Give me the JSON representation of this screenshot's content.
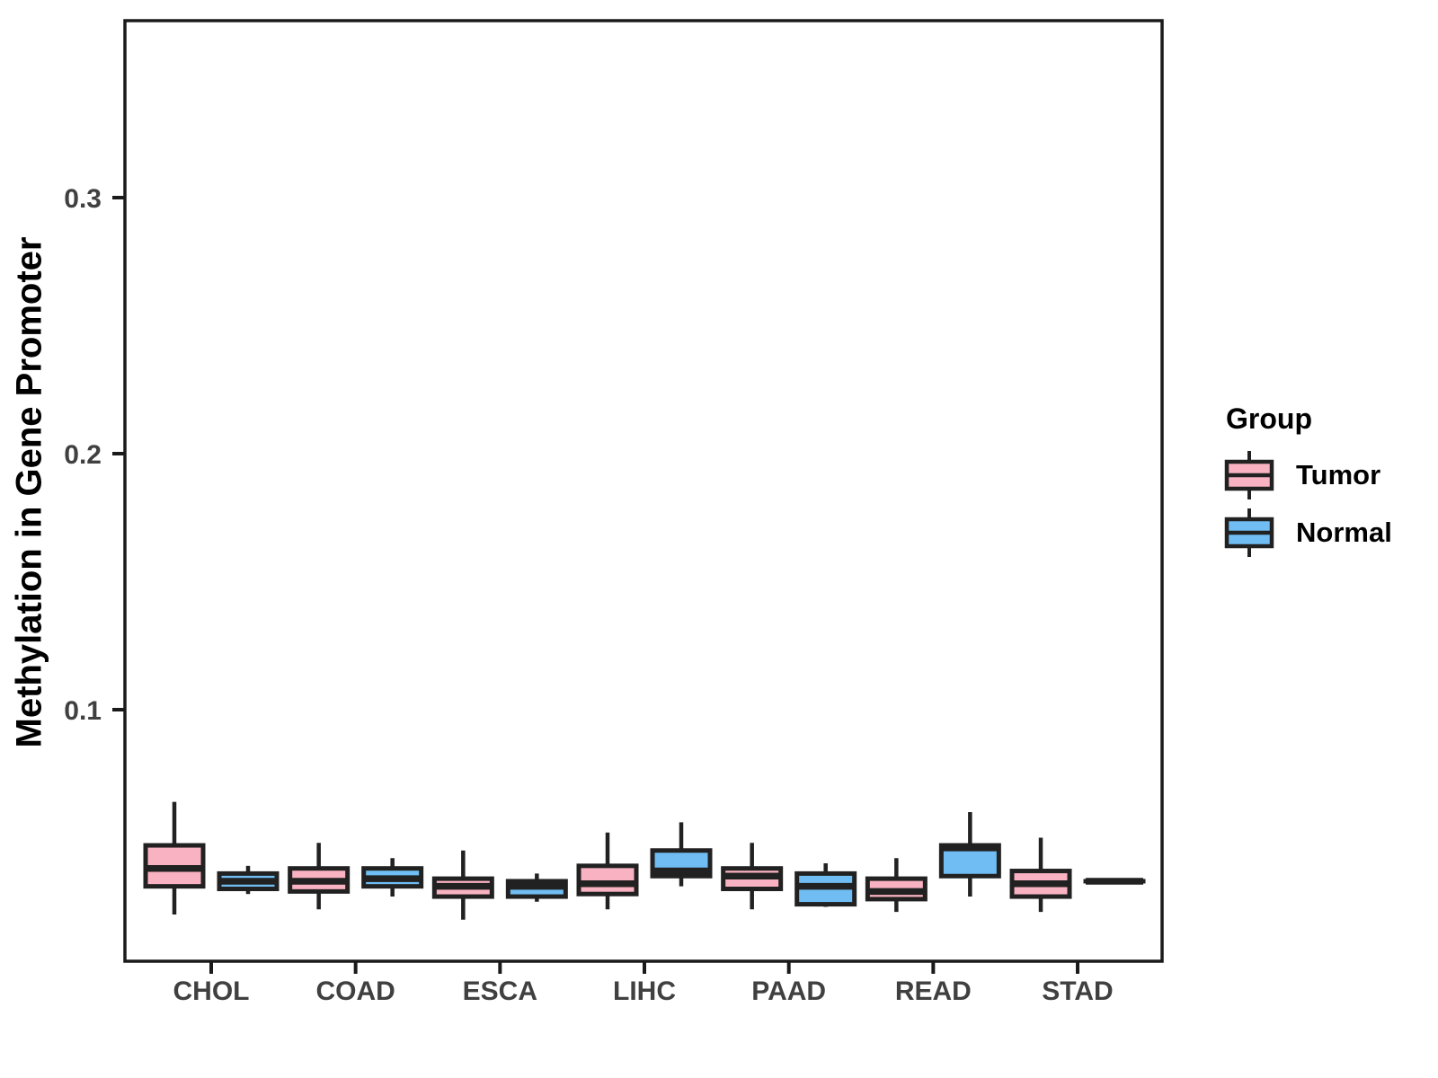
{
  "figure": {
    "background": "#FFFFFF"
  },
  "axes": {
    "y_title": "Methylation in Gene Promoter",
    "y_ticks": [
      {
        "label": "0.3",
        "value": 0.3
      },
      {
        "label": "0.2",
        "value": 0.2
      },
      {
        "label": "0.1",
        "value": 0.1
      }
    ],
    "x_tick_labels": [
      "CHOL",
      "COAD",
      "ESCA",
      "LIHC",
      "PAAD",
      "READ",
      "STAD"
    ]
  },
  "legend": {
    "title": "Group",
    "items": [
      {
        "label": "Tumor",
        "color": "#F9B2C1"
      },
      {
        "label": "Normal",
        "color": "#6FBDF2"
      }
    ]
  },
  "style": {
    "box_border": "#212121",
    "panel_border": "#1A1A1A",
    "tick_color": "#1A1A1A",
    "axis_text_color": "#404040"
  },
  "chart_data": {
    "type": "boxplot",
    "title": "",
    "xlabel": "",
    "ylabel": "Methylation in Gene Promoter",
    "categories": [
      "CHOL",
      "COAD",
      "ESCA",
      "LIHC",
      "PAAD",
      "READ",
      "STAD"
    ],
    "yticks": [
      0.1,
      0.2,
      0.3
    ],
    "ylim": [
      0.002,
      0.369
    ],
    "grid": false,
    "legend_position": "right",
    "series": [
      {
        "name": "Tumor",
        "color": "#F9B2C1",
        "boxes": [
          {
            "category": "CHOL",
            "low": 0.02,
            "q1": 0.031,
            "median": 0.038,
            "q3": 0.047,
            "high": 0.064
          },
          {
            "category": "COAD",
            "low": 0.022,
            "q1": 0.029,
            "median": 0.033,
            "q3": 0.038,
            "high": 0.048
          },
          {
            "category": "ESCA",
            "low": 0.018,
            "q1": 0.027,
            "median": 0.031,
            "q3": 0.034,
            "high": 0.045
          },
          {
            "category": "LIHC",
            "low": 0.022,
            "q1": 0.028,
            "median": 0.032,
            "q3": 0.039,
            "high": 0.052
          },
          {
            "category": "PAAD",
            "low": 0.022,
            "q1": 0.03,
            "median": 0.035,
            "q3": 0.038,
            "high": 0.048
          },
          {
            "category": "READ",
            "low": 0.021,
            "q1": 0.026,
            "median": 0.029,
            "q3": 0.034,
            "high": 0.042
          },
          {
            "category": "STAD",
            "low": 0.021,
            "q1": 0.027,
            "median": 0.032,
            "q3": 0.037,
            "high": 0.05
          }
        ]
      },
      {
        "name": "Normal",
        "color": "#6FBDF2",
        "boxes": [
          {
            "category": "CHOL",
            "low": 0.028,
            "q1": 0.03,
            "median": 0.033,
            "q3": 0.036,
            "high": 0.039
          },
          {
            "category": "COAD",
            "low": 0.027,
            "q1": 0.031,
            "median": 0.034,
            "q3": 0.038,
            "high": 0.042
          },
          {
            "category": "ESCA",
            "low": 0.025,
            "q1": 0.027,
            "median": 0.031,
            "q3": 0.033,
            "high": 0.036
          },
          {
            "category": "LIHC",
            "low": 0.031,
            "q1": 0.035,
            "median": 0.037,
            "q3": 0.045,
            "high": 0.056
          },
          {
            "category": "PAAD",
            "low": 0.023,
            "q1": 0.024,
            "median": 0.031,
            "q3": 0.036,
            "high": 0.04
          },
          {
            "category": "READ",
            "low": 0.027,
            "q1": 0.035,
            "median": 0.046,
            "q3": 0.047,
            "high": 0.06
          },
          {
            "category": "STAD",
            "low": 0.033,
            "q1": 0.033,
            "median": 0.033,
            "q3": 0.033,
            "high": 0.033
          }
        ]
      }
    ]
  }
}
